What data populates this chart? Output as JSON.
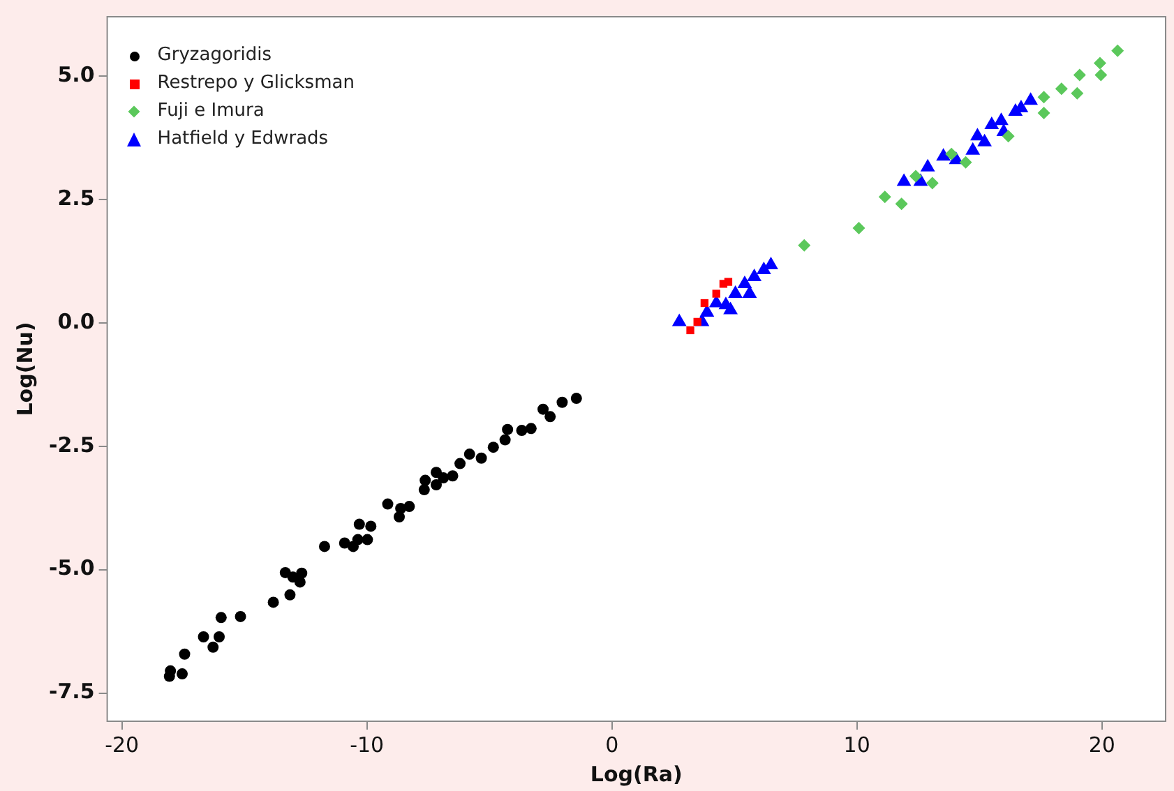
{
  "chart_data": {
    "type": "scatter",
    "xlabel": "Log(Ra)",
    "ylabel": "Log(Nu)",
    "xlim": [
      -20.6,
      22.6
    ],
    "ylim": [
      -8.07,
      6.2
    ],
    "xticks": [
      -20,
      -10,
      0,
      10,
      20
    ],
    "yticks": [
      {
        "value": 5,
        "label": "5.0"
      },
      {
        "value": 2.5,
        "label": "2.5"
      },
      {
        "value": 0,
        "label": "0.0"
      },
      {
        "value": -2.5,
        "label": "-2.5"
      },
      {
        "value": -5,
        "label": "-5.0"
      },
      {
        "value": -7.5,
        "label": "-7.5"
      }
    ],
    "grid": false,
    "legend": "top left",
    "series": [
      {
        "name": "Gryzagoridis",
        "color": "#000000",
        "marker": "circle",
        "x": [
          -18.06,
          -18.02,
          -17.54,
          -17.44,
          -16.67,
          -16.28,
          -16.03,
          -15.95,
          -15.16,
          -13.82,
          -13.14,
          -13.33,
          -13.02,
          -12.66,
          -12.73,
          -11.73,
          -10.91,
          -10.56,
          -10.37,
          -10.31,
          -9.98,
          -9.84,
          -9.15,
          -8.68,
          -8.62,
          -8.27,
          -7.66,
          -7.62,
          -7.17,
          -7.17,
          -6.88,
          -6.5,
          -6.2,
          -5.81,
          -5.33,
          -4.84,
          -4.26,
          -4.36,
          -3.68,
          -3.3,
          -2.81,
          -2.52,
          -2.03,
          -1.45
        ],
        "values": [
          -7.16,
          -7.05,
          -7.11,
          -6.71,
          -6.36,
          -6.57,
          -6.36,
          -5.97,
          -5.95,
          -5.66,
          -5.51,
          -5.06,
          -5.15,
          -5.07,
          -5.25,
          -4.53,
          -4.46,
          -4.53,
          -4.39,
          -4.08,
          -4.39,
          -4.12,
          -3.67,
          -3.93,
          -3.76,
          -3.72,
          -3.38,
          -3.19,
          -3.03,
          -3.28,
          -3.14,
          -3.1,
          -2.85,
          -2.66,
          -2.74,
          -2.52,
          -2.16,
          -2.37,
          -2.18,
          -2.14,
          -1.75,
          -1.9,
          -1.61,
          -1.53
        ]
      },
      {
        "name": "Restrepo y Glicksman",
        "color": "#ff0000",
        "marker": "square",
        "x": [
          3.2,
          3.49,
          3.78,
          4.26,
          4.55,
          4.75
        ],
        "values": [
          -0.15,
          0.02,
          0.4,
          0.59,
          0.79,
          0.83
        ]
      },
      {
        "name": "Fuji e Imura",
        "color": "#5bc85b",
        "marker": "diamond",
        "x": [
          7.85,
          10.08,
          11.14,
          11.82,
          12.4,
          13.08,
          13.86,
          14.44,
          16.18,
          17.63,
          17.63,
          18.35,
          18.99,
          19.09,
          19.96,
          19.92,
          20.64
        ],
        "values": [
          1.57,
          1.92,
          2.55,
          2.41,
          2.97,
          2.83,
          3.42,
          3.25,
          3.78,
          4.57,
          4.25,
          4.74,
          4.65,
          5.02,
          5.02,
          5.26,
          5.51
        ]
      },
      {
        "name": "Hatfield y Edwrads",
        "color": "#0000ff",
        "marker": "triangle",
        "x": [
          2.75,
          3.68,
          3.88,
          4.26,
          4.65,
          5.04,
          5.42,
          5.81,
          6.2,
          6.49,
          4.84,
          5.62,
          11.92,
          12.6,
          12.89,
          13.53,
          14.05,
          14.73,
          14.92,
          15.21,
          15.5,
          15.89,
          15.99,
          16.47,
          16.7,
          17.09
        ],
        "values": [
          0.02,
          0.02,
          0.21,
          0.4,
          0.36,
          0.59,
          0.79,
          0.93,
          1.07,
          1.17,
          0.26,
          0.59,
          2.86,
          2.86,
          3.15,
          3.37,
          3.3,
          3.49,
          3.78,
          3.66,
          4.01,
          4.09,
          3.87,
          4.28,
          4.35,
          4.5
        ]
      }
    ]
  }
}
